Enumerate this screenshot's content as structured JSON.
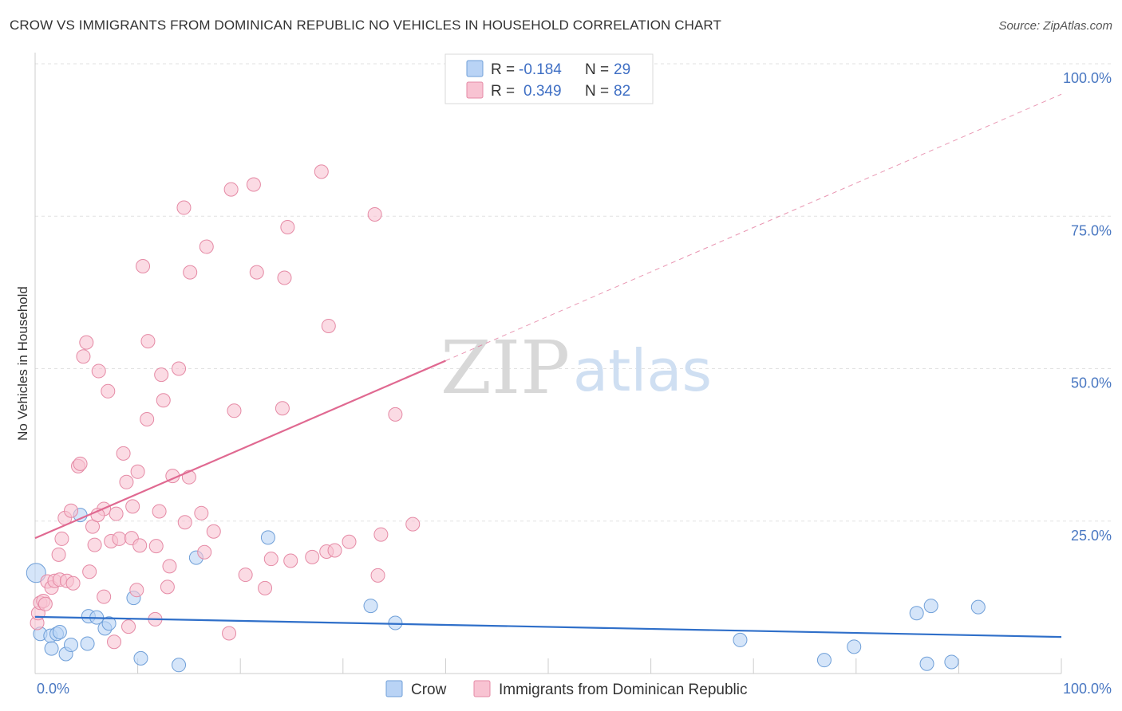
{
  "title": "CROW VS IMMIGRANTS FROM DOMINICAN REPUBLIC NO VEHICLES IN HOUSEHOLD CORRELATION CHART",
  "source": "Source: ZipAtlas.com",
  "watermark": {
    "zip": "ZIP",
    "atlas": "atlas"
  },
  "legend": {
    "r_label": "R =",
    "n_label": "N =",
    "entries": [
      {
        "name": "Crow",
        "r": "-0.184",
        "n": "29",
        "fill": "#b9d3f5",
        "stroke": "#6f9fd8"
      },
      {
        "name": "Immigrants from Dominican Republic",
        "r": "0.349",
        "n": "82",
        "fill": "#f8c3d2",
        "stroke": "#e58aa5"
      }
    ]
  },
  "chart_data": {
    "type": "scatter",
    "title": "CROW VS IMMIGRANTS FROM DOMINICAN REPUBLIC NO VEHICLES IN HOUSEHOLD CORRELATION CHART",
    "xlabel": "",
    "ylabel": "No Vehicles in Household",
    "xlim": [
      0,
      100
    ],
    "ylim": [
      0,
      100
    ],
    "x_tick_labels": [
      "0.0%",
      "100.0%"
    ],
    "y_tick_labels": [
      "100.0%",
      "75.0%",
      "50.0%",
      "25.0%"
    ],
    "y_ticks": [
      100,
      75,
      50,
      25
    ],
    "grid": true,
    "series": [
      {
        "name": "Crow",
        "color": "#6f9fd8",
        "fill": "#b9d3f5",
        "trend": {
          "x": [
            0,
            100
          ],
          "y": [
            9.3,
            6.0
          ],
          "style": "solid",
          "color": "#2f6fc9"
        },
        "points": [
          [
            0.1,
            16.5
          ],
          [
            0.5,
            6.5
          ],
          [
            1.5,
            6.2
          ],
          [
            1.6,
            4.1
          ],
          [
            2.1,
            6.5
          ],
          [
            2.4,
            6.8
          ],
          [
            3.0,
            3.2
          ],
          [
            3.5,
            4.7
          ],
          [
            4.4,
            26.0
          ],
          [
            5.1,
            4.9
          ],
          [
            5.2,
            9.4
          ],
          [
            6.0,
            9.2
          ],
          [
            6.8,
            7.4
          ],
          [
            7.2,
            8.2
          ],
          [
            9.6,
            12.4
          ],
          [
            10.3,
            2.5
          ],
          [
            14.0,
            1.4
          ],
          [
            15.7,
            19.0
          ],
          [
            22.7,
            22.3
          ],
          [
            32.7,
            11.1
          ],
          [
            35.1,
            8.3
          ],
          [
            68.7,
            5.5
          ],
          [
            76.9,
            2.2
          ],
          [
            79.8,
            4.4
          ],
          [
            85.9,
            9.9
          ],
          [
            86.9,
            1.6
          ],
          [
            87.3,
            11.1
          ],
          [
            89.3,
            1.9
          ],
          [
            91.9,
            10.9
          ]
        ]
      },
      {
        "name": "Immigrants from Dominican Republic",
        "color": "#e58aa5",
        "fill": "#f8c3d2",
        "trend": {
          "x": [
            0,
            40
          ],
          "y": [
            22.2,
            51.3
          ],
          "style": "solid",
          "color": "#e06991",
          "extension": {
            "x": [
              40,
              100
            ],
            "y": [
              51.3,
              95.0
            ],
            "style": "dashed"
          }
        },
        "points": [
          [
            0.2,
            8.3
          ],
          [
            0.3,
            9.9
          ],
          [
            0.5,
            11.6
          ],
          [
            0.8,
            11.9
          ],
          [
            1.0,
            11.4
          ],
          [
            1.2,
            15.1
          ],
          [
            1.6,
            14.1
          ],
          [
            1.9,
            15.2
          ],
          [
            2.3,
            19.5
          ],
          [
            2.4,
            15.4
          ],
          [
            2.6,
            22.1
          ],
          [
            2.9,
            25.5
          ],
          [
            3.1,
            15.2
          ],
          [
            3.5,
            26.7
          ],
          [
            3.7,
            14.8
          ],
          [
            4.2,
            34.0
          ],
          [
            4.4,
            34.4
          ],
          [
            4.7,
            52.0
          ],
          [
            5.0,
            54.3
          ],
          [
            5.3,
            16.7
          ],
          [
            5.6,
            24.1
          ],
          [
            5.8,
            21.1
          ],
          [
            6.2,
            49.6
          ],
          [
            6.7,
            12.6
          ],
          [
            6.7,
            27.0
          ],
          [
            7.1,
            46.3
          ],
          [
            7.4,
            21.7
          ],
          [
            7.7,
            5.2
          ],
          [
            7.9,
            26.2
          ],
          [
            8.2,
            22.1
          ],
          [
            8.6,
            36.1
          ],
          [
            8.9,
            31.4
          ],
          [
            9.1,
            7.7
          ],
          [
            9.4,
            22.2
          ],
          [
            9.5,
            27.4
          ],
          [
            9.9,
            13.7
          ],
          [
            10.0,
            33.1
          ],
          [
            10.2,
            21.0
          ],
          [
            10.5,
            66.8
          ],
          [
            10.9,
            41.7
          ],
          [
            11.0,
            54.5
          ],
          [
            11.7,
            8.9
          ],
          [
            11.8,
            20.9
          ],
          [
            12.1,
            26.6
          ],
          [
            12.3,
            49.0
          ],
          [
            12.5,
            44.8
          ],
          [
            12.9,
            14.2
          ],
          [
            13.1,
            17.6
          ],
          [
            13.4,
            32.4
          ],
          [
            14.0,
            50.0
          ],
          [
            14.5,
            76.4
          ],
          [
            14.6,
            24.8
          ],
          [
            15.0,
            32.2
          ],
          [
            15.1,
            65.8
          ],
          [
            16.2,
            26.3
          ],
          [
            16.5,
            19.9
          ],
          [
            16.7,
            70.0
          ],
          [
            17.4,
            23.3
          ],
          [
            18.9,
            6.6
          ],
          [
            19.1,
            79.4
          ],
          [
            19.4,
            43.1
          ],
          [
            20.5,
            16.2
          ],
          [
            21.3,
            80.2
          ],
          [
            21.6,
            65.8
          ],
          [
            23.0,
            18.8
          ],
          [
            24.1,
            43.5
          ],
          [
            24.3,
            64.9
          ],
          [
            24.6,
            73.2
          ],
          [
            24.9,
            18.5
          ],
          [
            27.0,
            19.1
          ],
          [
            27.9,
            82.3
          ],
          [
            28.4,
            20.0
          ],
          [
            28.6,
            57.0
          ],
          [
            29.2,
            20.2
          ],
          [
            30.6,
            21.6
          ],
          [
            33.1,
            75.3
          ],
          [
            33.4,
            16.1
          ],
          [
            33.7,
            22.8
          ],
          [
            35.1,
            42.5
          ],
          [
            36.8,
            24.5
          ],
          [
            22.4,
            14.0
          ],
          [
            6.1,
            26.0
          ]
        ]
      }
    ]
  }
}
